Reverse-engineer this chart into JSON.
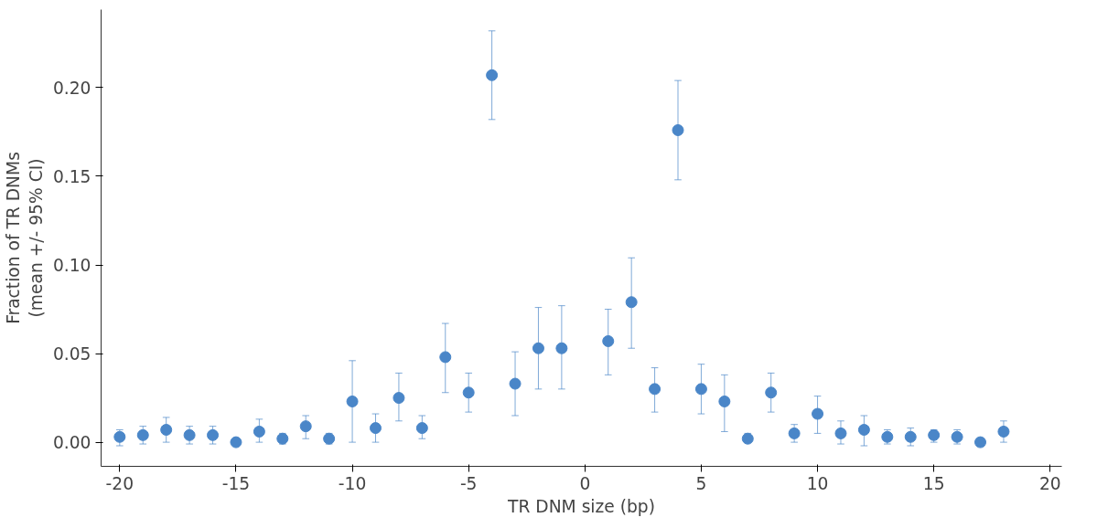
{
  "chart_data": {
    "type": "scatter",
    "xlabel": "TR DNM size (bp)",
    "ylabel": "Fraction of TR DNMs\n(mean +/- 95% CI)",
    "x": [
      -20,
      -19,
      -18,
      -17,
      -16,
      -15,
      -14,
      -13,
      -12,
      -11,
      -10,
      -9,
      -8,
      -7,
      -6,
      -5,
      -4,
      -3,
      -2,
      -1,
      1,
      2,
      3,
      4,
      5,
      6,
      7,
      8,
      9,
      10,
      11,
      12,
      13,
      14,
      15,
      16,
      17,
      18
    ],
    "series": [
      {
        "color": "#4a86c8",
        "values": [
          0.003,
          0.004,
          0.007,
          0.004,
          0.004,
          0.0,
          0.006,
          0.002,
          0.009,
          0.002,
          0.023,
          0.008,
          0.025,
          0.008,
          0.048,
          0.028,
          0.207,
          0.033,
          0.053,
          0.053,
          0.057,
          0.079,
          0.03,
          0.176,
          0.03,
          0.023,
          0.002,
          0.028,
          0.005,
          0.016,
          0.005,
          0.007,
          0.003,
          0.003,
          0.004,
          0.003,
          0.0,
          0.006
        ],
        "errors": [
          [
            -0.002,
            0.007
          ],
          [
            -0.001,
            0.009
          ],
          [
            0.0,
            0.014
          ],
          [
            -0.001,
            0.009
          ],
          [
            -0.001,
            0.009
          ],
          null,
          [
            0.0,
            0.013
          ],
          [
            -0.001,
            0.005
          ],
          [
            0.002,
            0.015
          ],
          [
            -0.001,
            0.005
          ],
          [
            0.0,
            0.046
          ],
          [
            0.0,
            0.016
          ],
          [
            0.012,
            0.039
          ],
          [
            0.002,
            0.015
          ],
          [
            0.028,
            0.067
          ],
          [
            0.017,
            0.039
          ],
          [
            0.182,
            0.232
          ],
          [
            0.015,
            0.051
          ],
          [
            0.03,
            0.076
          ],
          [
            0.03,
            0.077
          ],
          [
            0.038,
            0.075
          ],
          [
            0.053,
            0.104
          ],
          [
            0.017,
            0.042
          ],
          [
            0.148,
            0.204
          ],
          [
            0.016,
            0.044
          ],
          [
            0.006,
            0.038
          ],
          [
            0.0,
            0.005
          ],
          [
            0.017,
            0.039
          ],
          [
            0.0,
            0.01
          ],
          [
            0.005,
            0.026
          ],
          [
            -0.001,
            0.012
          ],
          [
            -0.002,
            0.015
          ],
          [
            -0.001,
            0.007
          ],
          [
            -0.002,
            0.008
          ],
          [
            0.0,
            0.007
          ],
          [
            -0.001,
            0.007
          ],
          null,
          [
            0.0,
            0.012
          ]
        ]
      }
    ],
    "xlim": [
      -20.8,
      20.5
    ],
    "ylim": [
      -0.0136,
      0.244
    ],
    "xticks": [
      -20,
      -15,
      -10,
      -5,
      0,
      5,
      10,
      15,
      20
    ],
    "yticks": [
      {
        "value": 0,
        "label": "0.00"
      },
      {
        "value": 0.05,
        "label": "0.05"
      },
      {
        "value": 0.1,
        "label": "0.10"
      },
      {
        "value": 0.15,
        "label": "0.15"
      },
      {
        "value": 0.2,
        "label": "0.20"
      }
    ],
    "marker": "circle",
    "grid": false
  }
}
